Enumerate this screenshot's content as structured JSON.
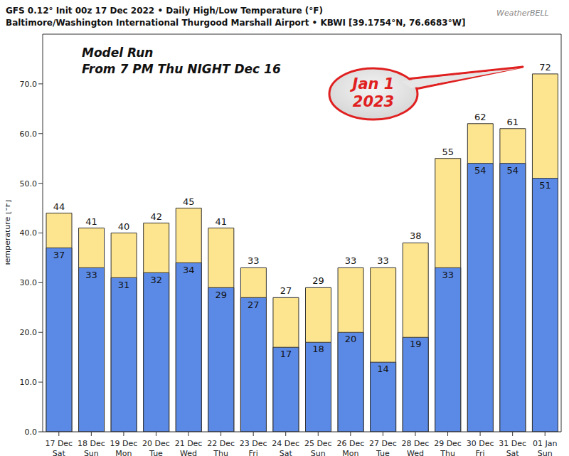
{
  "chart_data": {
    "type": "bar",
    "title": "GFS 0.12° Init 00z 17 Dec 2022 • Daily High/Low Temperature (°F)",
    "subtitle": "Baltimore/Washington International Thurgood Marshall Airport • KBWI [39.1754°N, 76.6683°W]",
    "y_label": "Temperature [°F]",
    "annotations": {
      "model_run": [
        "Model Run",
        "From 7 PM Thu NIGHT Dec 16"
      ],
      "callout": [
        "Jan 1",
        "2023"
      ],
      "logo": "WeatherBELL"
    },
    "categories": [
      "17 Dec",
      "18 Dec",
      "19 Dec",
      "20 Dec",
      "21 Dec",
      "22 Dec",
      "23 Dec",
      "24 Dec",
      "25 Dec",
      "26 Dec",
      "27 Dec",
      "28 Dec",
      "29 Dec",
      "30 Dec",
      "31 Dec",
      "01 Jan"
    ],
    "weekdays": [
      "Sat",
      "Sun",
      "Mon",
      "Tue",
      "Wed",
      "Thu",
      "Fri",
      "Sat",
      "Sun",
      "Mon",
      "Tue",
      "Wed",
      "Thu",
      "Fri",
      "Sat",
      "Sun"
    ],
    "series": [
      {
        "color": "#fde48e",
        "values": [
          44,
          41,
          40,
          42,
          45,
          41,
          33,
          27,
          29,
          33,
          33,
          38,
          55,
          62,
          61,
          72
        ]
      },
      {
        "color": "#5b8ae6",
        "values": [
          37,
          33,
          31,
          32,
          34,
          29,
          27,
          17,
          18,
          20,
          14,
          19,
          33,
          54,
          54,
          51
        ]
      }
    ],
    "ylim": [
      0,
      80
    ],
    "yticks": [
      {
        "value": 0,
        "label": "0.0"
      },
      {
        "value": 10,
        "label": "10.0"
      },
      {
        "value": 20,
        "label": "20.0"
      },
      {
        "value": 30,
        "label": "30.0"
      },
      {
        "value": 40,
        "label": "40.0"
      },
      {
        "value": 50,
        "label": "50.0"
      },
      {
        "value": 60,
        "label": "60.0"
      },
      {
        "value": 70,
        "label": "70.0"
      }
    ],
    "grid": false,
    "legend": false,
    "data_labels": true
  }
}
